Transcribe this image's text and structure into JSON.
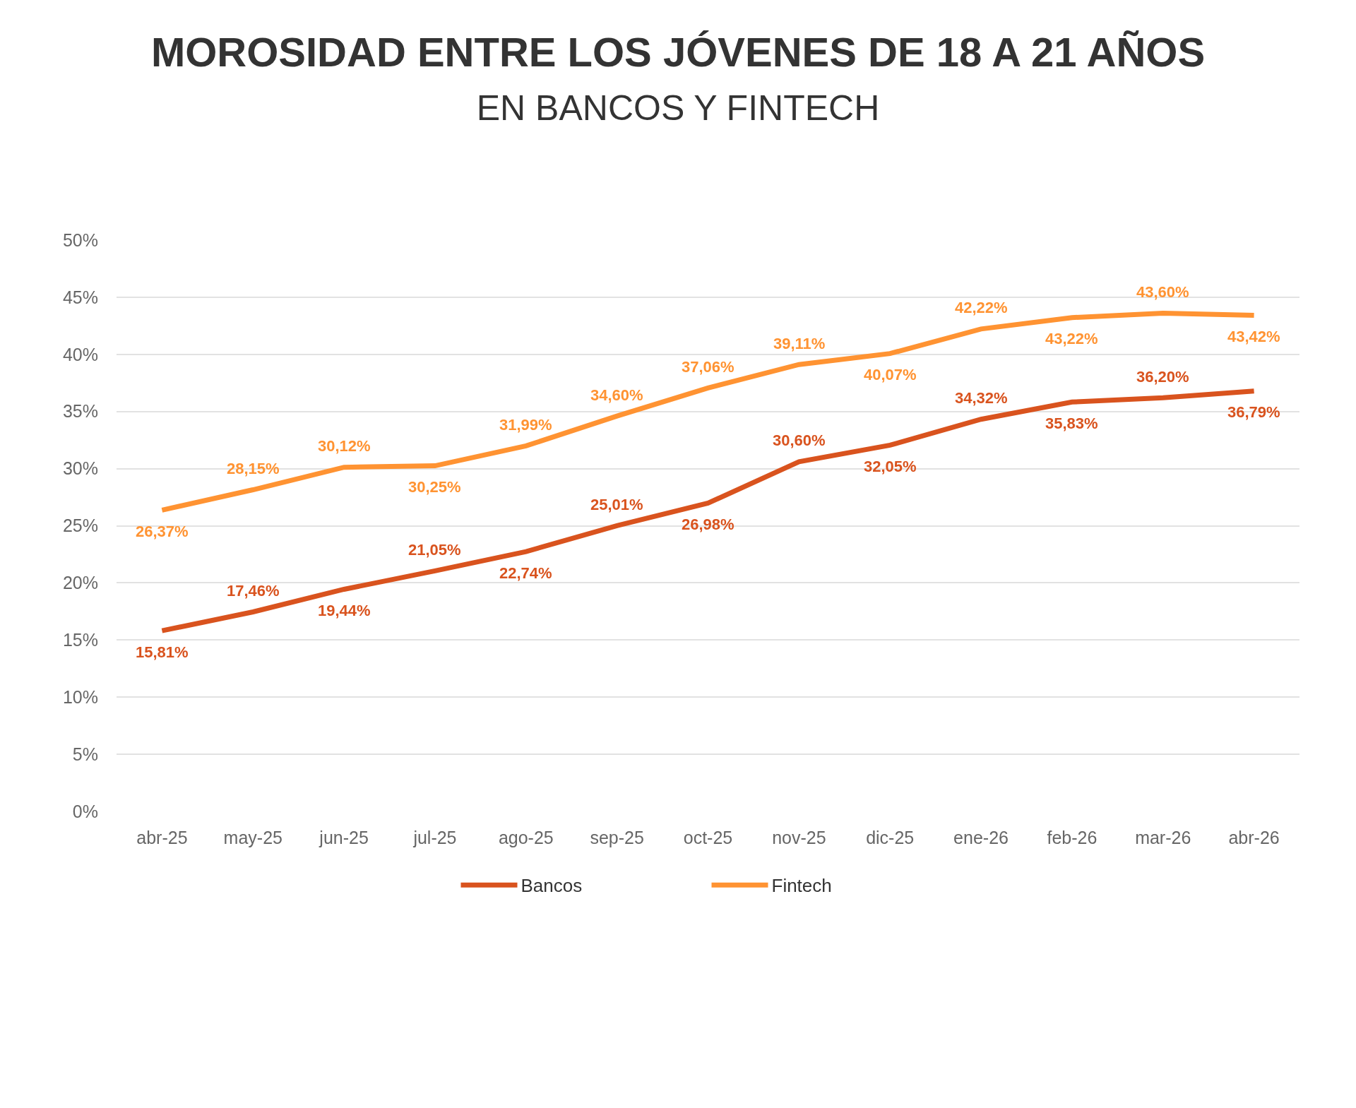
{
  "chart_data": {
    "type": "line",
    "title": "MOROSIDAD ENTRE LOS JÓVENES DE 18 A 21 AÑOS",
    "subtitle": "EN BANCOS Y FINTECH",
    "categories": [
      "abr-25",
      "may-25",
      "jun-25",
      "jul-25",
      "ago-25",
      "sep-25",
      "oct-25",
      "nov-25",
      "dic-25",
      "ene-26",
      "feb-26",
      "mar-26",
      "abr-26"
    ],
    "series": [
      {
        "name": "Bancos",
        "color": "#d9531e",
        "values": [
          15.81,
          17.46,
          19.44,
          21.05,
          22.74,
          25.01,
          26.98,
          30.6,
          32.05,
          34.32,
          35.83,
          36.2,
          36.79
        ],
        "value_labels": [
          "15,81%",
          "17,46%",
          "19,44%",
          "21,05%",
          "22,74%",
          "25,01%",
          "26,98%",
          "30,60%",
          "32,05%",
          "34,32%",
          "35,83%",
          "36,20%",
          "36,79%"
        ]
      },
      {
        "name": "Fintech",
        "color": "#ff9332",
        "values": [
          26.37,
          28.15,
          30.12,
          30.25,
          31.99,
          34.6,
          37.06,
          39.11,
          40.07,
          42.22,
          43.22,
          43.6,
          43.42
        ],
        "value_labels": [
          "26,37%",
          "28,15%",
          "30,12%",
          "30,25%",
          "31,99%",
          "34,60%",
          "37,06%",
          "39,11%",
          "40,07%",
          "42,22%",
          "43,22%",
          "43,60%",
          "43,42%"
        ]
      }
    ],
    "ylim": [
      0,
      50
    ],
    "yticks": [
      {
        "value": 0,
        "label": "0%"
      },
      {
        "value": 5,
        "label": "5%"
      },
      {
        "value": 10,
        "label": "10%"
      },
      {
        "value": 15,
        "label": "15%"
      },
      {
        "value": 20,
        "label": "20%"
      },
      {
        "value": 25,
        "label": "25%"
      },
      {
        "value": 30,
        "label": "30%"
      },
      {
        "value": 35,
        "label": "35%"
      },
      {
        "value": 40,
        "label": "40%"
      },
      {
        "value": 45,
        "label": "45%"
      },
      {
        "value": 50,
        "label": "50%"
      }
    ],
    "grid": "y",
    "legend": "bottom",
    "marker": "none",
    "line_style": "solid"
  }
}
